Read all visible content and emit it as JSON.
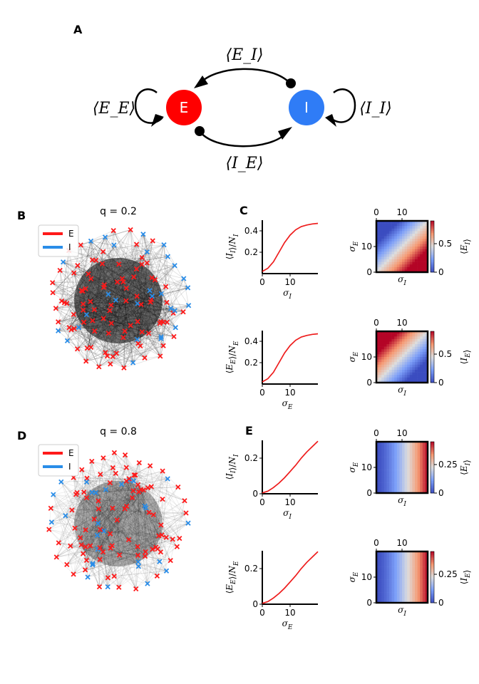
{
  "panel_labels": {
    "A": "A",
    "B": "B",
    "C": "C",
    "D": "D",
    "E": "E"
  },
  "diagram": {
    "node_e": "E",
    "node_i": "I",
    "label_ee": "⟨E_E⟩",
    "label_ei": "⟨E_I⟩",
    "label_ie": "⟨I_E⟩",
    "label_ii": "⟨I_I⟩",
    "colors": {
      "E": "#ff0000",
      "I": "#2f7cf6"
    }
  },
  "networks": [
    {
      "title": "q = 0.2",
      "legend": [
        "E",
        "I"
      ],
      "colors": {
        "E": "#ff1a1a",
        "I": "#2a8de8"
      }
    },
    {
      "title": "q = 0.8",
      "legend": [
        "E",
        "I"
      ],
      "colors": {
        "E": "#ff1a1a",
        "I": "#2a8de8"
      }
    }
  ],
  "chart_data": [
    {
      "type": "line",
      "panel": "C",
      "ylabel": "⟨I_I⟩/N_I",
      "xlabel": "σ_I",
      "xticks": [
        0,
        10
      ],
      "yticks": [
        0.2,
        0.4
      ],
      "xlim": [
        0,
        20
      ],
      "ylim": [
        0,
        0.5
      ],
      "x": [
        0,
        2,
        4,
        6,
        8,
        10,
        12,
        14,
        16,
        18,
        20
      ],
      "y": [
        0.02,
        0.05,
        0.11,
        0.2,
        0.29,
        0.36,
        0.41,
        0.44,
        0.455,
        0.465,
        0.47
      ]
    },
    {
      "type": "heatmap",
      "panel": "C",
      "xlabel": "σ_I",
      "ylabel": "σ_E",
      "xticks": [
        0,
        10
      ],
      "yticks": [
        0,
        10
      ],
      "colorbar_label": "⟨E_I⟩",
      "colorbar_ticks": [
        0,
        0.5
      ],
      "vmax": 0.9,
      "field": "pos"
    },
    {
      "type": "line",
      "panel": "C",
      "ylabel": "⟨E_E⟩/N_E",
      "xlabel": "σ_E",
      "xticks": [
        0,
        10
      ],
      "yticks": [
        0.2,
        0.4
      ],
      "xlim": [
        0,
        20
      ],
      "ylim": [
        0,
        0.5
      ],
      "x": [
        0,
        2,
        4,
        6,
        8,
        10,
        12,
        14,
        16,
        18,
        20
      ],
      "y": [
        0.02,
        0.05,
        0.11,
        0.2,
        0.29,
        0.36,
        0.41,
        0.44,
        0.455,
        0.465,
        0.47
      ]
    },
    {
      "type": "heatmap",
      "panel": "C",
      "xlabel": "σ_I",
      "ylabel": "σ_E",
      "xticks": [
        0,
        10
      ],
      "yticks": [
        0,
        10
      ],
      "colorbar_label": "⟨I_E⟩",
      "colorbar_ticks": [
        0,
        0.5
      ],
      "vmax": 0.9,
      "field": "neg"
    },
    {
      "type": "line",
      "panel": "E",
      "ylabel": "⟨I_I⟩/N_I",
      "xlabel": "σ_I",
      "xticks": [
        0,
        10
      ],
      "yticks": [
        0,
        0.2
      ],
      "xlim": [
        0,
        20
      ],
      "ylim": [
        0,
        0.3
      ],
      "x": [
        0,
        2,
        4,
        6,
        8,
        10,
        12,
        14,
        16,
        18,
        20
      ],
      "y": [
        0.005,
        0.015,
        0.035,
        0.06,
        0.09,
        0.125,
        0.16,
        0.2,
        0.235,
        0.265,
        0.295
      ]
    },
    {
      "type": "heatmap",
      "panel": "E",
      "xlabel": "σ_I",
      "ylabel": "σ_E",
      "xticks": [
        0,
        10
      ],
      "yticks": [
        0,
        10
      ],
      "colorbar_label": "⟨E_I⟩",
      "colorbar_ticks": [
        0,
        0.25
      ],
      "vmax": 0.45,
      "field": "x"
    },
    {
      "type": "line",
      "panel": "E",
      "ylabel": "⟨E_E⟩/N_E",
      "xlabel": "σ_E",
      "xticks": [
        0,
        10
      ],
      "yticks": [
        0,
        0.2
      ],
      "xlim": [
        0,
        20
      ],
      "ylim": [
        0,
        0.3
      ],
      "x": [
        0,
        2,
        4,
        6,
        8,
        10,
        12,
        14,
        16,
        18,
        20
      ],
      "y": [
        0.005,
        0.015,
        0.035,
        0.06,
        0.09,
        0.125,
        0.16,
        0.2,
        0.235,
        0.265,
        0.295
      ]
    },
    {
      "type": "heatmap",
      "panel": "E",
      "xlabel": "σ_I",
      "ylabel": "σ_E",
      "xticks": [
        0,
        10
      ],
      "yticks": [
        0,
        10
      ],
      "colorbar_label": "⟨I_E⟩",
      "colorbar_ticks": [
        0,
        0.25
      ],
      "vmax": 0.45,
      "field": "x"
    }
  ]
}
